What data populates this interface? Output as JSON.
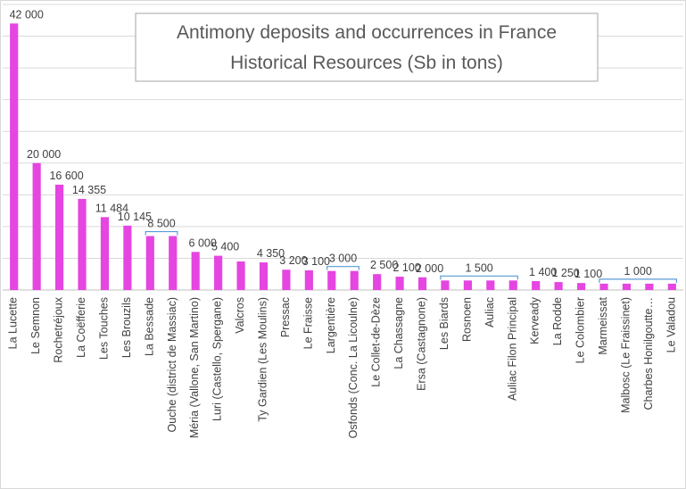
{
  "chart_data": {
    "type": "bar",
    "title": "Antimony deposits and occurrences in France",
    "subtitle": "Historical Resources (Sb in tons)",
    "categories": [
      "La Lucette",
      "Le Semnon",
      "Rochetréjoux",
      "La Coëfferie",
      "Les Touches",
      "Les Brouzils",
      "La Bessade",
      "Ouche (district de Massiac)",
      "Méria (Vallone, San Martino)",
      "Luri (Castello, Spergane)",
      "Valcros",
      "Ty Gardien (Les Moulins)",
      "Pressac",
      "Le Fraisse",
      "Largentière",
      "Osfonds (Conc. La Licoulne)",
      "Le Collet-de-Dèze",
      "La Chassagne",
      "Ersa (Castagnone)",
      "Les Biards",
      "Rosnoen",
      "Auliac",
      "Auliac Filon Principal",
      "Kerveady",
      "La Rodde",
      "Le Colombier",
      "Marmeissat",
      "Malbosc (Le Fraissinet)",
      "Charbes Honilgoutte…",
      "Le Valadou"
    ],
    "values": [
      42000,
      20000,
      16600,
      14355,
      11484,
      10145,
      8500,
      8500,
      6000,
      5400,
      4500,
      4350,
      3200,
      3100,
      3000,
      3000,
      2500,
      2100,
      2000,
      1500,
      1500,
      1500,
      1500,
      1400,
      1250,
      1100,
      1000,
      1000,
      1000,
      1000
    ],
    "value_labels": [
      "42 000",
      "20 000",
      "16 600",
      "14 355",
      "11 484",
      "10 145",
      "8 500",
      null,
      "6 000",
      "5 400",
      null,
      "4 350",
      "3 200",
      "3 100",
      "3 000",
      null,
      "2 500",
      "2 100",
      "2 000",
      "1 500",
      null,
      null,
      null,
      "1 400",
      "1 250",
      "1 100",
      "1 000",
      null,
      null,
      null
    ],
    "color": "#e545e0",
    "ylim": [
      0,
      45000
    ],
    "yticks": [
      0,
      5000,
      10000,
      15000,
      20000,
      25000,
      30000,
      35000,
      40000,
      45000
    ],
    "grid": true
  }
}
